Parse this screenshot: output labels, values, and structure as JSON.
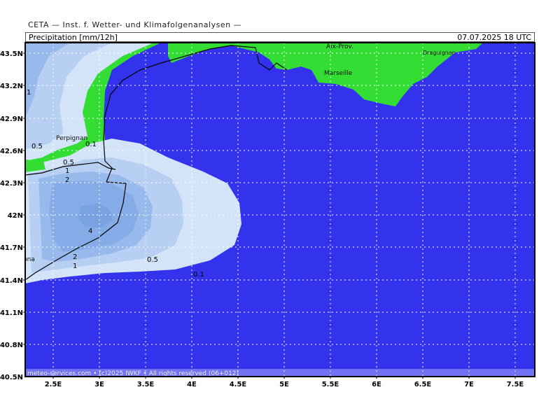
{
  "header": {
    "institute": "CETA — Inst. f. Wetter- und Klimafolgenanalysen —",
    "parameter": "Precipitation [mm/12h]",
    "valid_time": "07.07.2025 18 UTC"
  },
  "footer": {
    "credit": "meteo-services.com • (c)2025 IWKF • All rights reserved (06+012)"
  },
  "axes": {
    "lat_labels": [
      "43.5N",
      "43.2N",
      "42.9N",
      "42.6N",
      "42.3N",
      "42N",
      "41.7N",
      "41.4N",
      "41.1N",
      "40.8N",
      "40.5N"
    ],
    "lon_labels": [
      "2.5E",
      "3E",
      "3.5E",
      "4E",
      "4.5E",
      "5E",
      "5.5E",
      "6E",
      "6.5E",
      "7E",
      "7.5E"
    ]
  },
  "places": {
    "aix": "Aix-Prov.",
    "marseille": "Marseille",
    "draguignan": "Draguignan",
    "perpignan": "Perpignan",
    "barcelona": "Barcelona"
  },
  "contour_labels": {
    "l1": "1",
    "l05a": "0.5",
    "l01a": "0.1",
    "l05b": "0.5",
    "l1b": "1",
    "l2a": "2",
    "l4": "4",
    "l2b": "2",
    "l1c": "1",
    "l05c": "0.5",
    "l01b": "0.1"
  },
  "colors": {
    "sea": "#3333ee",
    "land": "#33dd33",
    "p01": "#d4e4f8",
    "p05": "#b6cff2",
    "p1": "#97b9ec",
    "p2": "#85ace6",
    "p4": "#7aa2e0"
  }
}
